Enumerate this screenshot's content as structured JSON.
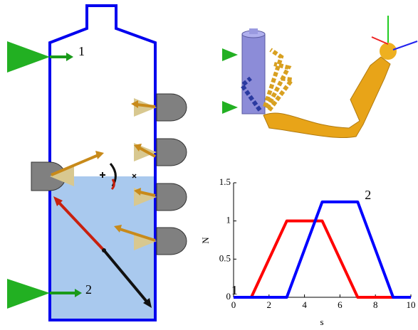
{
  "diagram": {
    "labels": [
      "1",
      "2"
    ]
  },
  "chart_data": {
    "type": "line",
    "xlabel": "s",
    "ylabel": "N",
    "xlim": [
      0,
      10
    ],
    "xticks": [
      0,
      2,
      4,
      6,
      8,
      10
    ],
    "ylim": [
      0,
      1.5
    ],
    "yticks": [
      0,
      0.5,
      1,
      1.5
    ],
    "series": [
      {
        "name": "1",
        "color": "#ff0000",
        "x": [
          0,
          1,
          3,
          5,
          7,
          10
        ],
        "values": [
          0,
          0,
          1,
          1,
          0,
          0
        ]
      },
      {
        "name": "2",
        "color": "#0000ff",
        "x": [
          0,
          3,
          5,
          7,
          9,
          10
        ],
        "values": [
          0,
          0,
          1.25,
          1.25,
          0,
          0
        ]
      }
    ]
  }
}
